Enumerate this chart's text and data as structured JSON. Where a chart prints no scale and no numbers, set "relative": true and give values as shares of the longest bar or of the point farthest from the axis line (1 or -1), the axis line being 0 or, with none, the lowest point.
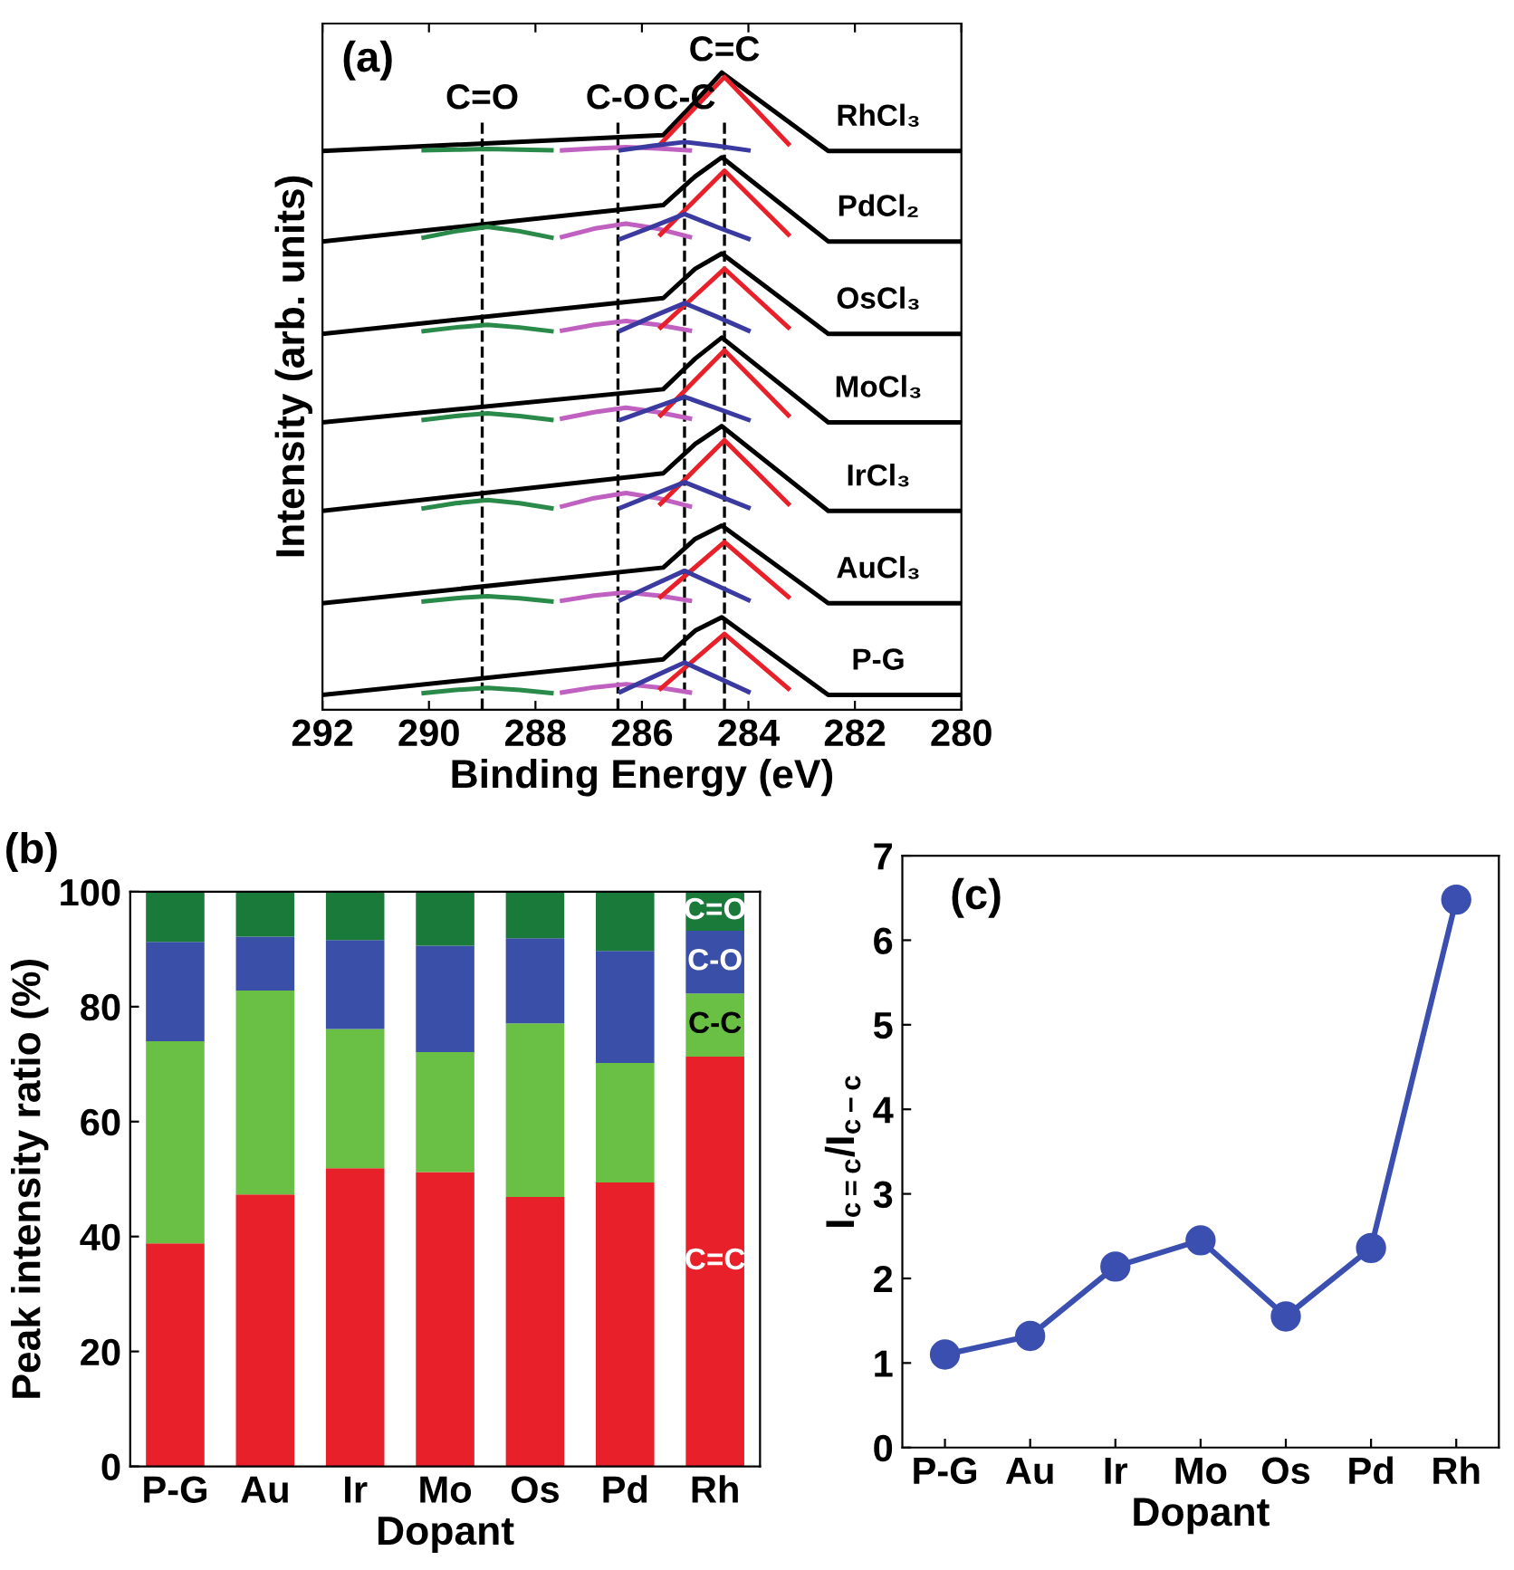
{
  "chart_data": [
    {
      "type": "line",
      "relative": true,
      "tick_labels": "x",
      "xlabel": "Binding Energy (eV)",
      "ylabel": "Intensity (arb. units)",
      "xlim": [
        292,
        280
      ],
      "xticks": [
        292,
        290,
        288,
        286,
        284,
        282,
        280
      ],
      "annotations": [
        "(a)"
      ],
      "grid": false,
      "legend": false,
      "marker": "none",
      "line_style": "solid",
      "ref_lines": [
        {
          "axis": "x",
          "value": 289.0,
          "label": "C=O",
          "color": "#000000",
          "line_style": "dashed"
        },
        {
          "axis": "x",
          "value": 286.45,
          "label": "C-O",
          "color": "#000000",
          "line_style": "dashed"
        },
        {
          "axis": "x",
          "value": 285.2,
          "label": "C-C",
          "color": "#000000",
          "line_style": "dashed"
        },
        {
          "axis": "x",
          "value": 284.45,
          "label": "C=C",
          "color": "#000000",
          "line_style": "dashed"
        }
      ],
      "series": [
        {
          "name": "RhCl₃",
          "color": "#000000",
          "x": [
            292,
            285.6,
            285.0,
            284.5,
            282.5,
            280
          ],
          "values": [
            0.877,
            0.902,
            0.954,
            1.0,
            0.877,
            0.877
          ]
        },
        {
          "color": "#c060c0",
          "x": [
            287.5,
            286.9,
            286.3,
            285.7,
            285.1
          ],
          "values": [
            0.878,
            0.881,
            0.883,
            0.881,
            0.878
          ]
        },
        {
          "color": "#2a8a4a",
          "x": [
            290.1,
            289.5,
            288.9,
            288.3,
            287.7
          ],
          "values": [
            0.878,
            0.879,
            0.88,
            0.879,
            0.878
          ]
        },
        {
          "color": "#e8202a",
          "x": [
            285.65,
            285.05,
            284.45,
            283.85,
            283.25
          ],
          "values": [
            0.888,
            0.941,
            0.993,
            0.941,
            0.888
          ]
        },
        {
          "color": "#3a3aa0",
          "x": [
            286.4,
            285.8,
            285.2,
            284.6,
            284.0
          ],
          "values": [
            0.878,
            0.885,
            0.891,
            0.885,
            0.878
          ]
        },
        {
          "name": "PdCl₂",
          "color": "#000000",
          "x": [
            292,
            285.6,
            285.0,
            284.5,
            282.5,
            280
          ],
          "values": [
            0.735,
            0.792,
            0.837,
            0.867,
            0.735,
            0.735
          ]
        },
        {
          "color": "#c060c0",
          "x": [
            287.5,
            286.9,
            286.3,
            285.7,
            285.1
          ],
          "values": [
            0.742,
            0.755,
            0.763,
            0.755,
            0.742
          ]
        },
        {
          "color": "#2a8a4a",
          "x": [
            290.1,
            289.5,
            288.9,
            288.3,
            287.7
          ],
          "values": [
            0.741,
            0.751,
            0.758,
            0.751,
            0.741
          ]
        },
        {
          "color": "#e8202a",
          "x": [
            285.65,
            285.05,
            284.45,
            283.85,
            283.25
          ],
          "values": [
            0.746,
            0.796,
            0.846,
            0.796,
            0.746
          ]
        },
        {
          "color": "#3a3aa0",
          "x": [
            286.4,
            285.8,
            285.2,
            284.6,
            284.0
          ],
          "values": [
            0.739,
            0.758,
            0.778,
            0.758,
            0.739
          ]
        },
        {
          "name": "OsCl₃",
          "color": "#000000",
          "x": [
            292,
            285.6,
            285.0,
            284.5,
            282.5,
            280
          ],
          "values": [
            0.59,
            0.646,
            0.692,
            0.716,
            0.59,
            0.59
          ]
        },
        {
          "color": "#c060c0",
          "x": [
            287.5,
            286.9,
            286.3,
            285.7,
            285.1
          ],
          "values": [
            0.595,
            0.604,
            0.61,
            0.604,
            0.595
          ]
        },
        {
          "color": "#2a8a4a",
          "x": [
            290.1,
            289.5,
            288.9,
            288.3,
            287.7
          ],
          "values": [
            0.594,
            0.6,
            0.604,
            0.6,
            0.594
          ]
        },
        {
          "color": "#e8202a",
          "x": [
            285.65,
            285.05,
            284.45,
            283.85,
            283.25
          ],
          "values": [
            0.6,
            0.646,
            0.692,
            0.646,
            0.6
          ]
        },
        {
          "color": "#3a3aa0",
          "x": [
            286.4,
            285.8,
            285.2,
            284.6,
            284.0
          ],
          "values": [
            0.595,
            0.617,
            0.638,
            0.617,
            0.595
          ]
        },
        {
          "name": "MoCl₃",
          "color": "#000000",
          "x": [
            292,
            285.6,
            285.0,
            284.5,
            282.5,
            280
          ],
          "values": [
            0.451,
            0.503,
            0.551,
            0.584,
            0.451,
            0.451
          ]
        },
        {
          "color": "#c060c0",
          "x": [
            287.5,
            286.9,
            286.3,
            285.7,
            285.1
          ],
          "values": [
            0.457,
            0.467,
            0.474,
            0.467,
            0.457
          ]
        },
        {
          "color": "#e8202a",
          "x": [
            285.65,
            285.05,
            284.45,
            283.85,
            283.25
          ],
          "values": [
            0.462,
            0.513,
            0.564,
            0.513,
            0.462
          ]
        },
        {
          "color": "#3a3aa0",
          "x": [
            286.4,
            285.8,
            285.2,
            284.6,
            284.0
          ],
          "values": [
            0.455,
            0.473,
            0.491,
            0.473,
            0.455
          ]
        },
        {
          "color": "#2a8a4a",
          "x": [
            290.1,
            289.5,
            288.9,
            288.3,
            287.7
          ],
          "values": [
            0.455,
            0.461,
            0.465,
            0.461,
            0.455
          ]
        },
        {
          "name": "IrCl₃",
          "color": "#000000",
          "x": [
            292,
            285.6,
            285.0,
            284.5,
            282.5,
            280
          ],
          "values": [
            0.312,
            0.371,
            0.417,
            0.445,
            0.312,
            0.312
          ]
        },
        {
          "color": "#c060c0",
          "x": [
            287.5,
            286.9,
            286.3,
            285.7,
            285.1
          ],
          "values": [
            0.319,
            0.332,
            0.34,
            0.332,
            0.319
          ]
        },
        {
          "color": "#2a8a4a",
          "x": [
            290.1,
            289.5,
            288.9,
            288.3,
            287.7
          ],
          "values": [
            0.316,
            0.324,
            0.329,
            0.324,
            0.316
          ]
        },
        {
          "color": "#e8202a",
          "x": [
            285.65,
            285.05,
            284.45,
            283.85,
            283.25
          ],
          "values": [
            0.323,
            0.373,
            0.423,
            0.373,
            0.323
          ]
        },
        {
          "color": "#3a3aa0",
          "x": [
            286.4,
            285.8,
            285.2,
            284.6,
            284.0
          ],
          "values": [
            0.317,
            0.337,
            0.357,
            0.337,
            0.317
          ]
        },
        {
          "name": "AuCl₃",
          "color": "#000000",
          "x": [
            292,
            285.6,
            285.0,
            284.5,
            282.5,
            280
          ],
          "values": [
            0.167,
            0.223,
            0.268,
            0.289,
            0.167,
            0.167
          ]
        },
        {
          "color": "#c060c0",
          "x": [
            287.5,
            286.9,
            286.3,
            285.7,
            285.1
          ],
          "values": [
            0.171,
            0.179,
            0.184,
            0.179,
            0.171
          ]
        },
        {
          "color": "#2a8a4a",
          "x": [
            290.1,
            289.5,
            288.9,
            288.3,
            287.7
          ],
          "values": [
            0.17,
            0.175,
            0.178,
            0.175,
            0.17
          ]
        },
        {
          "color": "#e8202a",
          "x": [
            285.65,
            285.05,
            284.45,
            283.85,
            283.25
          ],
          "values": [
            0.177,
            0.22,
            0.263,
            0.22,
            0.177
          ]
        },
        {
          "color": "#3a3aa0",
          "x": [
            286.4,
            285.8,
            285.2,
            284.6,
            284.0
          ],
          "values": [
            0.172,
            0.195,
            0.218,
            0.195,
            0.172
          ]
        },
        {
          "name": "P-G",
          "color": "#000000",
          "x": [
            292,
            285.6,
            285.0,
            284.5,
            282.5,
            280
          ],
          "values": [
            0.023,
            0.079,
            0.124,
            0.145,
            0.023,
            0.023
          ]
        },
        {
          "color": "#c060c0",
          "x": [
            287.5,
            286.9,
            286.3,
            285.7,
            285.1
          ],
          "values": [
            0.027,
            0.035,
            0.04,
            0.035,
            0.027
          ]
        },
        {
          "color": "#2a8a4a",
          "x": [
            290.1,
            289.5,
            288.9,
            288.3,
            287.7
          ],
          "values": [
            0.026,
            0.031,
            0.034,
            0.031,
            0.026
          ]
        },
        {
          "color": "#e8202a",
          "x": [
            285.65,
            285.05,
            284.45,
            283.85,
            283.25
          ],
          "values": [
            0.033,
            0.076,
            0.119,
            0.076,
            0.033
          ]
        },
        {
          "color": "#3a3aa0",
          "x": [
            286.4,
            285.8,
            285.2,
            284.6,
            284.0
          ],
          "values": [
            0.028,
            0.051,
            0.074,
            0.051,
            0.028
          ]
        }
      ]
    },
    {
      "type": "bar",
      "stacked": true,
      "xlabel": "Dopant",
      "ylabel": "Peak intensity ratio (%)",
      "ylim": [
        0,
        100
      ],
      "yticks": [
        0,
        20,
        40,
        60,
        80,
        100
      ],
      "annotations": [
        "(b)"
      ],
      "grid": false,
      "legend": false,
      "categories": [
        "P-G",
        "Au",
        "Ir",
        "Mo",
        "Os",
        "Pd",
        "Rh"
      ],
      "series": [
        {
          "name": "C=C",
          "color": "#e8202a",
          "values": [
            38.8,
            47.3,
            51.9,
            51.2,
            46.9,
            49.4,
            71.3
          ]
        },
        {
          "name": "C-C",
          "color": "#6abf45",
          "values": [
            35.2,
            35.5,
            24.2,
            20.9,
            30.2,
            20.8,
            11.0
          ]
        },
        {
          "name": "C-O",
          "color": "#3a4fa8",
          "values": [
            17.3,
            9.4,
            15.5,
            18.5,
            14.8,
            19.5,
            10.9
          ]
        },
        {
          "name": "C=O",
          "color": "#1a7a3a",
          "values": [
            8.7,
            7.8,
            8.4,
            9.4,
            8.1,
            10.3,
            6.8
          ]
        }
      ]
    },
    {
      "type": "line",
      "xlabel": "Dopant",
      "ylabel": "I$_{c=c}$/I$_{c−c}$",
      "ylim": [
        0,
        7
      ],
      "yticks": [
        0,
        1,
        2,
        3,
        4,
        5,
        6,
        7
      ],
      "annotations": [
        "(c)"
      ],
      "grid": false,
      "legend": false,
      "marker": "circle",
      "line_style": "solid",
      "categories": [
        "P-G",
        "Au",
        "Ir",
        "Mo",
        "Os",
        "Pd",
        "Rh"
      ],
      "series": [
        {
          "color": "#3a4fb0",
          "values": [
            1.1,
            1.32,
            2.14,
            2.45,
            1.55,
            2.36,
            6.48
          ]
        }
      ]
    }
  ]
}
